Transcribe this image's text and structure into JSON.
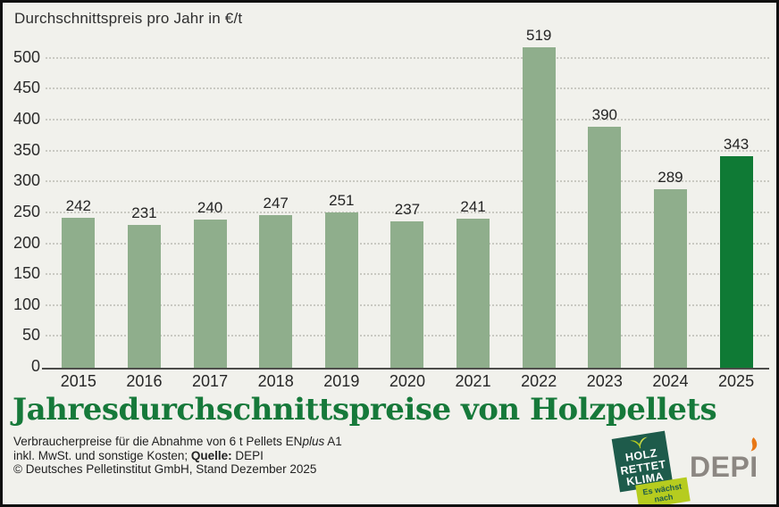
{
  "header": {
    "axis_title": "Durchschnittspreis pro Jahr in €/t"
  },
  "chart_data": {
    "type": "bar",
    "categories": [
      "2015",
      "2016",
      "2017",
      "2018",
      "2019",
      "2020",
      "2021",
      "2022",
      "2023",
      "2024",
      "2025"
    ],
    "values": [
      242,
      231,
      240,
      247,
      251,
      237,
      241,
      519,
      390,
      289,
      343
    ],
    "title": "Jahresdurchschnittspreise von Holzpellets",
    "xlabel": "",
    "ylabel": "Durchschnittspreis pro Jahr in €/t",
    "ylim": [
      0,
      559
    ],
    "yticks": [
      0,
      50,
      100,
      150,
      200,
      250,
      300,
      350,
      400,
      450,
      500
    ],
    "grid": "horizontal-dotted",
    "legend": "none",
    "bar_color": "#8fae8c",
    "highlight_category": "2025",
    "highlight_color": "#0f7a35",
    "value_labels": true
  },
  "main_title": {
    "text": "Jahresdurchschnittspreise von Holzpellets",
    "color": "#16793a"
  },
  "footer": {
    "line1_pre": "Verbraucherpreise für die Abnahme von 6 t Pellets EN",
    "line1_italic": "plus",
    "line1_post": " A1",
    "line2_pre": "inkl. MwSt. und sonstige Kosten; ",
    "line2_bold": "Quelle:",
    "line2_post": " DEPI",
    "line3": "© Deutsches Pelletinstitut GmbH, Stand Dezember 2025"
  },
  "logos": {
    "holz_rettet_klima": {
      "line1": "HOLZ",
      "line2": "RETTET",
      "line3": "KLIMA",
      "banner_line1": "Es wächst",
      "banner_line2": "nach",
      "square_color": "#1e5b4b",
      "banner_color": "#b6cc1f"
    },
    "depi": {
      "text": "DEPI",
      "color": "#8c8782",
      "flame_color": "#e87715"
    }
  }
}
